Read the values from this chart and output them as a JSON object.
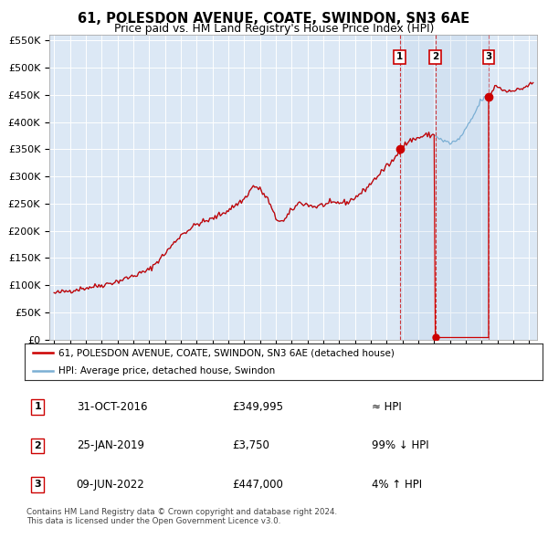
{
  "title": "61, POLESDON AVENUE, COATE, SWINDON, SN3 6AE",
  "subtitle": "Price paid vs. HM Land Registry's House Price Index (HPI)",
  "ylim": [
    0,
    560000
  ],
  "yticks": [
    0,
    50000,
    100000,
    150000,
    200000,
    250000,
    300000,
    350000,
    400000,
    450000,
    500000,
    550000
  ],
  "ytick_labels": [
    "£0",
    "£50K",
    "£100K",
    "£150K",
    "£200K",
    "£250K",
    "£300K",
    "£350K",
    "£400K",
    "£450K",
    "£500K",
    "£550K"
  ],
  "xlim_start": 1994.7,
  "xlim_end": 2025.5,
  "hpi_color": "#7bafd4",
  "price_color": "#cc0000",
  "background_color": "#dce8f5",
  "grid_color": "#ffffff",
  "transaction1_date": 2016.83,
  "transaction1_price": 349995,
  "transaction2_date": 2019.07,
  "transaction2_price": 3750,
  "transaction3_date": 2022.44,
  "transaction3_price": 447000,
  "legend_line1": "61, POLESDON AVENUE, COATE, SWINDON, SN3 6AE (detached house)",
  "legend_line2": "HPI: Average price, detached house, Swindon",
  "table_row1_num": "1",
  "table_row1_date": "31-OCT-2016",
  "table_row1_price": "£349,995",
  "table_row1_hpi": "≈ HPI",
  "table_row2_num": "2",
  "table_row2_date": "25-JAN-2019",
  "table_row2_price": "£3,750",
  "table_row2_hpi": "99% ↓ HPI",
  "table_row3_num": "3",
  "table_row3_date": "09-JUN-2022",
  "table_row3_price": "£447,000",
  "table_row3_hpi": "4% ↑ HPI",
  "copyright_text": "Contains HM Land Registry data © Crown copyright and database right 2024.\nThis data is licensed under the Open Government Licence v3.0."
}
